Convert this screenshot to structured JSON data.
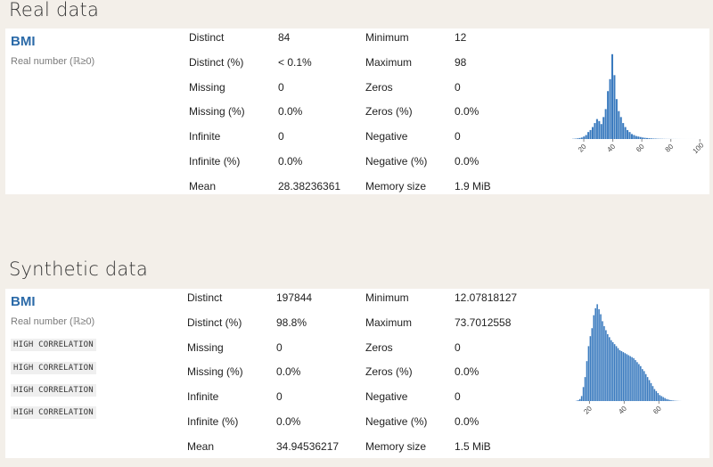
{
  "real": {
    "section_title": "Real data",
    "variable": "BMI",
    "type_label": "Real number (ℝ≥0)",
    "stats_left": [
      {
        "label": "Distinct",
        "value": "84"
      },
      {
        "label": "Distinct (%)",
        "value": "< 0.1%"
      },
      {
        "label": "Missing",
        "value": "0"
      },
      {
        "label": "Missing (%)",
        "value": "0.0%"
      },
      {
        "label": "Infinite",
        "value": "0"
      },
      {
        "label": "Infinite (%)",
        "value": "0.0%"
      },
      {
        "label": "Mean",
        "value": "28.38236361"
      }
    ],
    "stats_right": [
      {
        "label": "Minimum",
        "value": "12"
      },
      {
        "label": "Maximum",
        "value": "98"
      },
      {
        "label": "Zeros",
        "value": "0"
      },
      {
        "label": "Zeros (%)",
        "value": "0.0%"
      },
      {
        "label": "Negative",
        "value": "0"
      },
      {
        "label": "Negative (%)",
        "value": "0.0%"
      },
      {
        "label": "Memory size",
        "value": "1.9 MiB"
      }
    ]
  },
  "synthetic": {
    "section_title": "Synthetic data",
    "variable": "BMI",
    "type_label": "Real number (ℝ≥0)",
    "badges": [
      "HIGH CORRELATION",
      "HIGH CORRELATION",
      "HIGH CORRELATION",
      "HIGH CORRELATION"
    ],
    "stats_left": [
      {
        "label": "Distinct",
        "value": "197844"
      },
      {
        "label": "Distinct (%)",
        "value": "98.8%"
      },
      {
        "label": "Missing",
        "value": "0"
      },
      {
        "label": "Missing (%)",
        "value": "0.0%"
      },
      {
        "label": "Infinite",
        "value": "0"
      },
      {
        "label": "Infinite (%)",
        "value": "0.0%"
      },
      {
        "label": "Mean",
        "value": "34.94536217"
      }
    ],
    "stats_right": [
      {
        "label": "Minimum",
        "value": "12.07818127"
      },
      {
        "label": "Maximum",
        "value": "73.7012558"
      },
      {
        "label": "Zeros",
        "value": "0"
      },
      {
        "label": "Zeros (%)",
        "value": "0.0%"
      },
      {
        "label": "Negative",
        "value": "0"
      },
      {
        "label": "Negative (%)",
        "value": "0.0%"
      },
      {
        "label": "Memory size",
        "value": "1.5 MiB"
      }
    ]
  },
  "colors": {
    "bar": "#3b7bbf",
    "title": "#2b6aa8",
    "background": "#f3efe9"
  },
  "chart_data": [
    {
      "type": "bar",
      "title": "",
      "xlim": [
        12,
        98
      ],
      "x_ticks": [
        "20",
        "40",
        "60",
        "80",
        "100"
      ],
      "bin_start": 12,
      "bin_width": 1.5,
      "values": [
        0.2,
        0.4,
        0.6,
        1,
        1.5,
        2.5,
        4,
        7,
        9,
        12,
        16,
        20,
        18,
        15,
        22,
        30,
        48,
        60,
        85,
        64,
        40,
        28,
        22,
        16,
        12,
        9,
        7,
        5,
        4,
        3,
        2.5,
        2,
        1.5,
        1.2,
        1,
        0.8,
        0.6,
        0.5,
        0.4,
        0.3,
        0.25,
        0.2,
        0.15,
        0.1,
        0.1,
        0.08,
        0.06,
        0.05,
        0.04,
        0.03,
        0.02,
        0.02,
        0.01,
        0.01,
        0.01,
        0.01,
        0.01
      ],
      "ylim": [
        0,
        100
      ]
    },
    {
      "type": "bar",
      "title": "",
      "xlim": [
        12.07818127,
        73.7012558
      ],
      "x_ticks": [
        "20",
        "40",
        "60"
      ],
      "bin_start": 12.07818127,
      "bin_width": 1.0,
      "values": [
        0.3,
        0.8,
        2,
        5,
        14,
        24,
        40,
        55,
        65,
        73,
        86,
        93,
        97,
        92,
        87,
        80,
        75,
        71,
        67,
        64,
        61,
        59,
        57,
        55,
        53,
        51,
        50,
        49,
        48,
        47,
        46,
        45,
        44,
        43,
        41,
        39,
        37,
        35,
        32,
        30,
        27,
        24,
        21,
        18,
        15,
        12,
        10,
        8,
        6,
        5,
        4,
        3,
        2,
        1.5,
        1,
        0.7,
        0.5,
        0.3,
        0.2,
        0.1,
        0.05
      ],
      "ylim": [
        0,
        100
      ]
    }
  ]
}
